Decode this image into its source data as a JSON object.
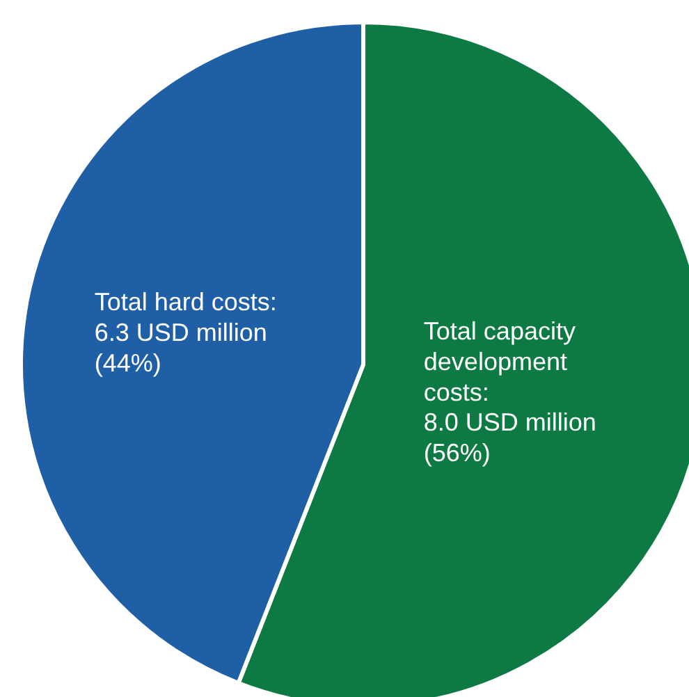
{
  "chart_data": {
    "type": "pie",
    "categories": [
      null,
      null
    ],
    "values": [
      8.0,
      6.3
    ],
    "colors": [
      "#0e7a43",
      "#1f5fa6"
    ],
    "value_labels": [
      "Total capacity development costs: 8.0 USD million (56%)",
      "Total hard costs: 6.3 USD million (44%)"
    ]
  }
}
